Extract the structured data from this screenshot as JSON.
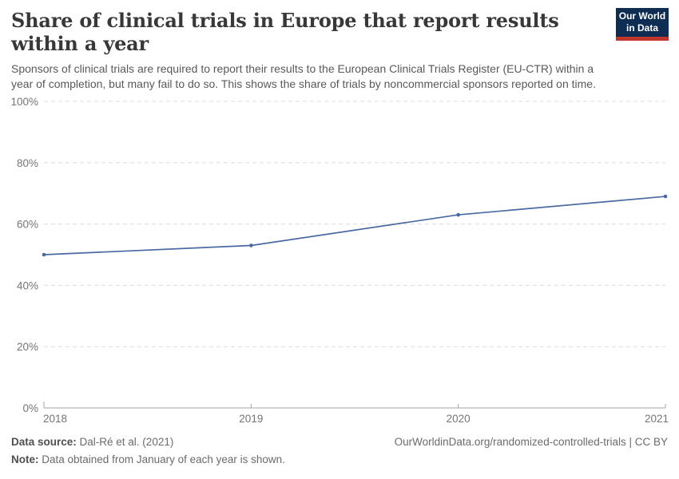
{
  "header": {
    "title": "Share of clinical trials in Europe that report results within a year",
    "subtitle": "Sponsors of clinical trials are required to report their results to the European Clinical Trials Register (EU-CTR) within a year of completion, but many fail to do so. This shows the share of trials by noncommercial sponsors reported on time.",
    "logo": {
      "line1": "Our World",
      "line2": "in Data",
      "bg_color": "#0f2d52",
      "bar_color": "#c0362c"
    }
  },
  "chart_data": {
    "type": "line",
    "title": "Share of clinical trials in Europe that report results within a year",
    "x": [
      "2018",
      "2019",
      "2020",
      "2021"
    ],
    "series": [
      {
        "name": "Share of trials by noncommercial sponsors reported on time",
        "values": [
          50,
          53,
          63,
          69
        ]
      }
    ],
    "unit": "%",
    "ylim": [
      0,
      100
    ],
    "y_ticks": [
      0,
      20,
      40,
      60,
      80,
      100
    ],
    "grid": "horizontal-dashed",
    "legend": "none",
    "line_color": "#4a69a3",
    "grid_color": "#dcdcdc",
    "axis_color": "#a5a5a5",
    "tick_label_color": "#747474",
    "marker": "circle"
  },
  "footer": {
    "source_label": "Data source:",
    "source_value": " Dal-Ré et al. (2021)",
    "note_label": "Note:",
    "note_value": " Data obtained from January of each year is shown.",
    "credit": "OurWorldinData.org/randomized-controlled-trials | CC BY"
  }
}
